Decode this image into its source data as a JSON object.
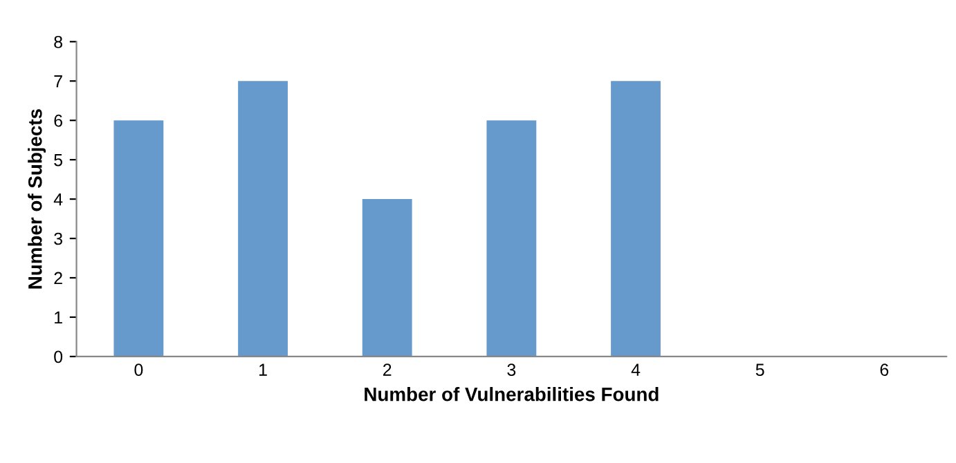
{
  "chart_data": {
    "type": "bar",
    "xlabel": "Number of Vulnerabilities Found",
    "ylabel": "Number of Subjects",
    "categories": [
      "0",
      "1",
      "2",
      "3",
      "4",
      "5",
      "6"
    ],
    "values": [
      6,
      7,
      4,
      6,
      7,
      0,
      0
    ],
    "color": "#6699cc",
    "ylim": [
      0,
      8
    ],
    "yticks": [
      0,
      1,
      2,
      3,
      4,
      5,
      6,
      7,
      8
    ],
    "grid": false
  }
}
